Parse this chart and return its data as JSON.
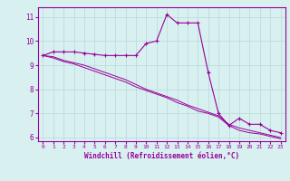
{
  "xlabel": "Windchill (Refroidissement éolien,°C)",
  "x": [
    0,
    1,
    2,
    3,
    4,
    5,
    6,
    7,
    8,
    9,
    10,
    11,
    12,
    13,
    14,
    15,
    16,
    17,
    18,
    19,
    20,
    21,
    22,
    23
  ],
  "y_main": [
    9.4,
    9.55,
    9.55,
    9.55,
    9.5,
    9.45,
    9.4,
    9.4,
    9.4,
    9.4,
    9.9,
    10.0,
    11.1,
    10.75,
    10.75,
    10.75,
    8.7,
    7.0,
    6.5,
    6.8,
    6.55,
    6.55,
    6.3,
    6.2
  ],
  "y_line2": [
    9.4,
    9.35,
    9.2,
    9.1,
    9.0,
    8.85,
    8.7,
    8.55,
    8.4,
    8.2,
    8.0,
    7.85,
    7.7,
    7.55,
    7.35,
    7.2,
    7.05,
    6.9,
    6.55,
    6.4,
    6.3,
    6.2,
    6.1,
    6.0
  ],
  "y_line3": [
    9.4,
    9.3,
    9.15,
    9.05,
    8.9,
    8.75,
    8.6,
    8.45,
    8.3,
    8.1,
    7.95,
    7.8,
    7.65,
    7.45,
    7.3,
    7.1,
    7.0,
    6.85,
    6.5,
    6.3,
    6.2,
    6.15,
    6.05,
    5.95
  ],
  "line_color": "#990099",
  "bg_color": "#d8f0f0",
  "grid_color": "#b8d8d8",
  "ylim": [
    5.85,
    11.4
  ],
  "yticks": [
    6,
    7,
    8,
    9,
    10,
    11
  ],
  "xlim": [
    -0.5,
    23.5
  ]
}
